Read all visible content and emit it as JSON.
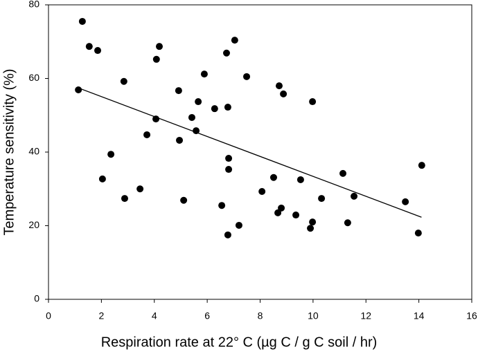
{
  "chart_data": {
    "type": "scatter",
    "x_label": "Respiration rate at 22° C (µg C / g C soil / hr)",
    "y_label": "Temperature sensitivity (%)",
    "xlim": [
      0,
      16
    ],
    "xticks": [
      0,
      2,
      4,
      6,
      8,
      10,
      12,
      14,
      16
    ],
    "ylim": [
      0,
      80
    ],
    "yticks": [
      0,
      20,
      40,
      60,
      80
    ],
    "series": [
      {
        "type": "scatter",
        "color": "#000000",
        "x": [
          1.13,
          1.28,
          1.54,
          1.86,
          2.04,
          2.36,
          2.85,
          2.88,
          3.46,
          3.72,
          4.06,
          4.08,
          4.19,
          4.92,
          4.95,
          5.11,
          5.42,
          5.58,
          5.66,
          5.89,
          6.28,
          6.55,
          6.73,
          6.78,
          6.78,
          6.81,
          6.81,
          7.04,
          7.2,
          7.49,
          8.07,
          8.51,
          8.67,
          8.72,
          8.8,
          8.88,
          9.35,
          9.53,
          9.9,
          9.98,
          9.98,
          10.32,
          11.13,
          11.31,
          11.55,
          13.49,
          13.98,
          14.11
        ],
        "values": [
          56.9,
          75.5,
          68.7,
          67.6,
          32.7,
          39.4,
          59.2,
          27.4,
          30.0,
          44.7,
          49.0,
          65.2,
          68.7,
          56.7,
          43.2,
          26.9,
          49.4,
          45.8,
          53.7,
          61.2,
          51.8,
          25.5,
          66.9,
          52.2,
          17.5,
          38.3,
          35.3,
          70.4,
          20.1,
          60.5,
          29.3,
          33.1,
          23.5,
          58.0,
          24.8,
          55.8,
          22.9,
          32.5,
          19.3,
          21.0,
          53.7,
          27.4,
          34.2,
          20.8,
          28.0,
          26.5,
          18.0,
          36.4
        ]
      },
      {
        "type": "line",
        "color": "#000000",
        "x": [
          1.1,
          14.1
        ],
        "values": [
          57.5,
          22.3
        ]
      }
    ]
  }
}
